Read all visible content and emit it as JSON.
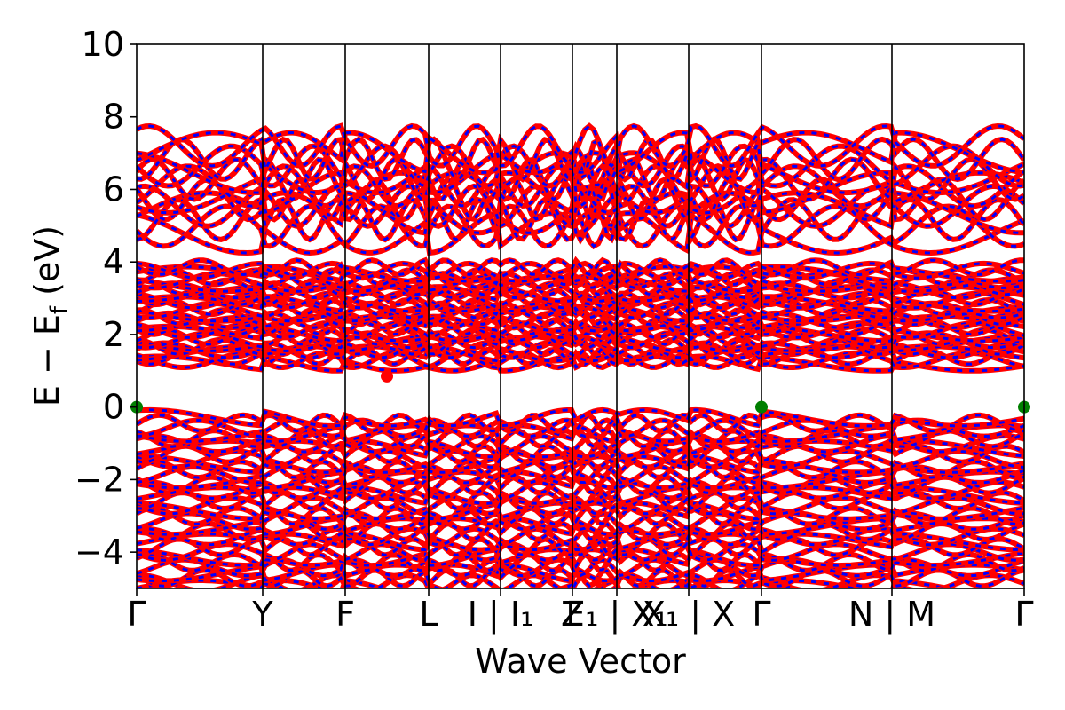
{
  "chart_data": {
    "type": "line",
    "title": "",
    "xlabel": "Wave Vector",
    "ylabel": "E − E_f (eV)",
    "ylabel_parts": {
      "main": "E − E",
      "sub": "f",
      "unit": " (eV)"
    },
    "ylim": [
      -5,
      10
    ],
    "yticks": [
      {
        "value": -4,
        "label": "−4"
      },
      {
        "value": -2,
        "label": "−2"
      },
      {
        "value": 0,
        "label": "0"
      },
      {
        "value": 2,
        "label": "2"
      },
      {
        "value": 4,
        "label": "4"
      },
      {
        "value": 6,
        "label": "6"
      },
      {
        "value": 8,
        "label": "8"
      },
      {
        "value": 10,
        "label": "10"
      }
    ],
    "xlim": [
      0,
      1
    ],
    "kpoints": [
      {
        "x": 0.0,
        "label": "Γ"
      },
      {
        "x": 0.142,
        "label": "Y"
      },
      {
        "x": 0.235,
        "label": "F"
      },
      {
        "x": 0.329,
        "label": "L"
      },
      {
        "x": 0.41,
        "label": "I | I₁"
      },
      {
        "x": 0.491,
        "label": "Z"
      },
      {
        "x": 0.541,
        "label": "F₁ | X₁"
      },
      {
        "x": 0.622,
        "label": "X₁ | X"
      },
      {
        "x": 0.704,
        "label": "Γ"
      },
      {
        "x": 0.851,
        "label": "N | M"
      },
      {
        "x": 1.0,
        "label": "Γ"
      }
    ],
    "series": [
      {
        "name": "",
        "color": "#ff0000",
        "style": "solid"
      },
      {
        "name": "",
        "color": "#0000ff",
        "style": "dashed"
      }
    ],
    "valence_band": {
      "top": -0.3,
      "bottom": -5.0,
      "max_at_gamma": 0.0
    },
    "conduction_band": {
      "bottom": 0.85,
      "top": 4.0
    },
    "upper_band": {
      "bottom": 4.4,
      "top": 7.5
    },
    "special_points": [
      {
        "name": "VBM",
        "x": 0.0,
        "y": 0.0,
        "color": "#007f00"
      },
      {
        "name": "VBM",
        "x": 0.704,
        "y": 0.0,
        "color": "#007f00"
      },
      {
        "name": "VBM",
        "x": 1.0,
        "y": 0.0,
        "color": "#007f00"
      },
      {
        "name": "CBM",
        "x": 0.282,
        "y": 0.85,
        "color": "#ff0000"
      }
    ],
    "grid": false,
    "legend": "none"
  }
}
